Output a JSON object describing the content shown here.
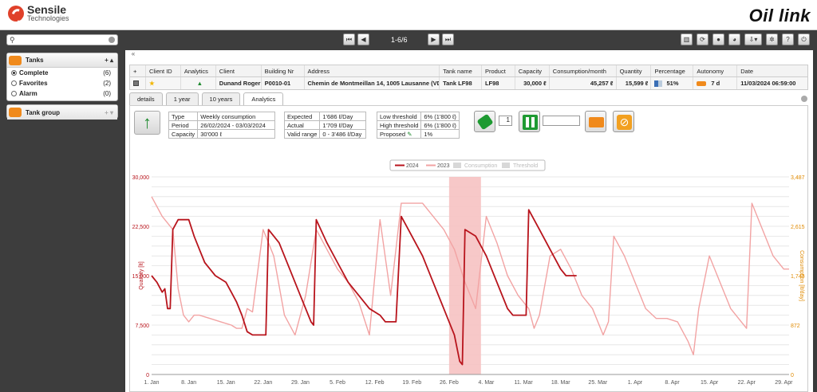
{
  "header": {
    "company_line1": "Sensile",
    "company_line2": "Technologies",
    "brand": "Oil link"
  },
  "left_panel": {
    "search_placeholder": "",
    "tanks": {
      "title": "Tanks",
      "controls": "+ ▴",
      "items": [
        {
          "label": "Complete",
          "count": "(6)",
          "selected": true
        },
        {
          "label": "Favorites",
          "count": "(2)",
          "selected": false
        },
        {
          "label": "Alarm",
          "count": "(0)",
          "selected": false
        }
      ]
    },
    "tank_group": {
      "title": "Tank group",
      "controls": "+ ▾"
    }
  },
  "toolbar": {
    "pager": "1-6/6"
  },
  "table": {
    "headers": [
      "+",
      "Client ID",
      "Analytics",
      "Client",
      "Building Nr",
      "Address",
      "Tank name",
      "Product",
      "Capacity",
      "Consumption/month",
      "Quantity",
      "Percentage",
      "Autonomy",
      "Date"
    ],
    "row": {
      "client": "Dunand Roger",
      "building": "P0010-01",
      "address": "Chemin de Montmeillan 14, 1005 Lausanne (VD)",
      "tank": "Tank LF98",
      "product": "LF98",
      "capacity": "30,000 ℓ",
      "consumption": "45,257 ℓ",
      "quantity": "15,599 ℓ",
      "percentage": "51%",
      "autonomy": "7 d",
      "date": "11/03/2024 06:59:00"
    }
  },
  "tabs": [
    "details",
    "1 year",
    "10 years",
    "Analytics"
  ],
  "info": {
    "type_label": "Type",
    "type_value": "Weekly consumption",
    "period_label": "Period",
    "period_value": "26/02/2024 - 03/03/2024",
    "capacity_label": "Capacity",
    "capacity_value": "30'000 ℓ",
    "expected_label": "Expected",
    "expected_value": "1'686 ℓ/Day",
    "actual_label": "Actual",
    "actual_value": "1'709 ℓ/Day",
    "valid_label": "Valid range",
    "valid_value": "0 - 3'486 ℓ/Day",
    "low_label": "Low threshold",
    "low_value": "6% (1'800 ℓ)",
    "high_label": "High threshold",
    "high_value": "6% (1'800 ℓ)",
    "proposed_label": "Proposed",
    "proposed_value": "1%",
    "spinner_value": "1"
  },
  "chart_data": {
    "type": "line",
    "legend": [
      "2024",
      "2023",
      "Consumption",
      "Threshold"
    ],
    "ylabel": "Quantity [lt]",
    "y2label": "Consumption [lt/day]",
    "ylim": [
      0,
      30000
    ],
    "yticks": [
      "30,000",
      "22,500",
      "15,000",
      "7,500",
      "0"
    ],
    "y2ticks": [
      "3,487",
      "2,615",
      "1,743",
      "872",
      "0"
    ],
    "xticks": [
      "1. Jan",
      "8. Jan",
      "15. Jan",
      "22. Jan",
      "29. Jan",
      "5. Feb",
      "12. Feb",
      "19. Feb",
      "26. Feb",
      "4. Mar",
      "11. Mar",
      "18. Mar",
      "25. Mar",
      "1. Apr",
      "8. Apr",
      "15. Apr",
      "22. Apr",
      "29. Apr"
    ],
    "highlight": {
      "from_day": 57,
      "to_day": 63
    },
    "series": [
      {
        "name": "2024",
        "color": "#b8141c",
        "points": [
          [
            1,
            15000
          ],
          [
            2,
            14000
          ],
          [
            3,
            12500
          ],
          [
            3.5,
            13000
          ],
          [
            4,
            10000
          ],
          [
            4.5,
            10000
          ],
          [
            5,
            22000
          ],
          [
            6,
            23500
          ],
          [
            8,
            23500
          ],
          [
            9,
            21000
          ],
          [
            10,
            19000
          ],
          [
            11,
            17000
          ],
          [
            12,
            16000
          ],
          [
            13,
            15000
          ],
          [
            14,
            14500
          ],
          [
            15,
            14000
          ],
          [
            16,
            12500
          ],
          [
            17,
            11000
          ],
          [
            18,
            9000
          ],
          [
            19,
            6500
          ],
          [
            20,
            6000
          ],
          [
            21,
            6000
          ],
          [
            22,
            6000
          ],
          [
            22.5,
            6000
          ],
          [
            23,
            22000
          ],
          [
            25,
            20000
          ],
          [
            27,
            16000
          ],
          [
            29,
            12000
          ],
          [
            31,
            8000
          ],
          [
            31.5,
            7500
          ],
          [
            32,
            23500
          ],
          [
            34,
            20000
          ],
          [
            36,
            17000
          ],
          [
            38,
            14000
          ],
          [
            40,
            12000
          ],
          [
            42,
            10000
          ],
          [
            44,
            9000
          ],
          [
            45,
            8000
          ],
          [
            46,
            8000
          ],
          [
            47,
            8000
          ],
          [
            48,
            24000
          ],
          [
            50,
            21000
          ],
          [
            52,
            18000
          ],
          [
            54,
            14000
          ],
          [
            56,
            10000
          ],
          [
            58,
            6000
          ],
          [
            59,
            2000
          ],
          [
            59.5,
            1500
          ],
          [
            60,
            22000
          ],
          [
            62,
            21000
          ],
          [
            64,
            18000
          ],
          [
            66,
            14000
          ],
          [
            68,
            10000
          ],
          [
            69,
            9000
          ],
          [
            71,
            9000
          ],
          [
            71.5,
            9000
          ],
          [
            72,
            25000
          ],
          [
            74,
            22000
          ],
          [
            76,
            19000
          ],
          [
            78,
            16000
          ],
          [
            79,
            15000
          ],
          [
            81,
            15000
          ]
        ]
      },
      {
        "name": "2023",
        "color": "#f2a3a3",
        "points": [
          [
            1,
            27000
          ],
          [
            3,
            24000
          ],
          [
            5,
            22000
          ],
          [
            6,
            13000
          ],
          [
            7,
            9000
          ],
          [
            8,
            8000
          ],
          [
            9,
            9000
          ],
          [
            10,
            9000
          ],
          [
            12,
            8500
          ],
          [
            14,
            8000
          ],
          [
            16,
            7500
          ],
          [
            17,
            7000
          ],
          [
            18,
            7000
          ],
          [
            19,
            10000
          ],
          [
            20,
            9500
          ],
          [
            22,
            22000
          ],
          [
            24,
            18000
          ],
          [
            26,
            9000
          ],
          [
            28,
            6000
          ],
          [
            30,
            12000
          ],
          [
            32,
            22000
          ],
          [
            34,
            19000
          ],
          [
            36,
            16000
          ],
          [
            38,
            14000
          ],
          [
            40,
            11000
          ],
          [
            42,
            6000
          ],
          [
            44,
            23500
          ],
          [
            46,
            12000
          ],
          [
            48,
            26000
          ],
          [
            50,
            26000
          ],
          [
            52,
            26000
          ],
          [
            54,
            24000
          ],
          [
            56,
            22000
          ],
          [
            58,
            19000
          ],
          [
            60,
            14000
          ],
          [
            62,
            10000
          ],
          [
            64,
            24000
          ],
          [
            66,
            20000
          ],
          [
            68,
            15000
          ],
          [
            70,
            12000
          ],
          [
            72,
            10000
          ],
          [
            73,
            7000
          ],
          [
            74,
            9000
          ],
          [
            76,
            18000
          ],
          [
            78,
            19000
          ],
          [
            80,
            16000
          ],
          [
            82,
            12000
          ],
          [
            84,
            10000
          ],
          [
            86,
            6000
          ],
          [
            87,
            8000
          ],
          [
            88,
            21000
          ],
          [
            90,
            18000
          ],
          [
            92,
            14000
          ],
          [
            94,
            10000
          ],
          [
            96,
            8500
          ],
          [
            98,
            8500
          ],
          [
            100,
            8000
          ],
          [
            102,
            5000
          ],
          [
            103,
            3000
          ],
          [
            104,
            10000
          ],
          [
            106,
            18000
          ],
          [
            108,
            14000
          ],
          [
            110,
            10000
          ],
          [
            112,
            8000
          ],
          [
            113,
            7000
          ],
          [
            114,
            26000
          ],
          [
            116,
            22000
          ],
          [
            118,
            18000
          ],
          [
            120,
            16000
          ],
          [
            121,
            16000
          ]
        ]
      }
    ]
  }
}
